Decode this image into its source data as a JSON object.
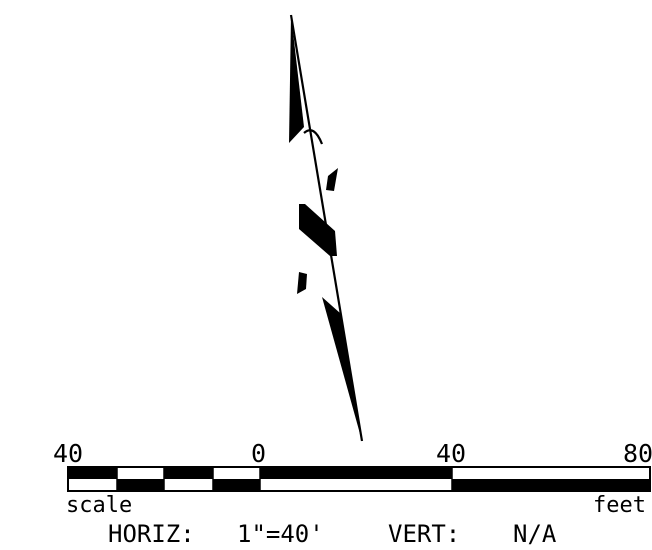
{
  "scale_bar": {
    "tick_labels": [
      "40",
      "0",
      "40",
      "80"
    ],
    "left_label": "scale",
    "right_label": "feet"
  },
  "footer": {
    "horiz_label": "HORIZ:",
    "horiz_value": "1\"=40'",
    "vert_label": "VERT:",
    "vert_value": "N/A"
  },
  "colors": {
    "ink": "#000000",
    "paper": "#ffffff"
  }
}
